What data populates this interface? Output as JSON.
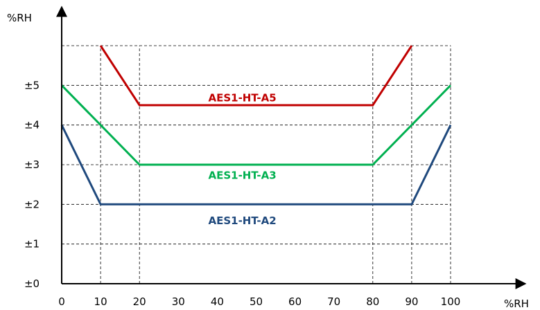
{
  "chart_data": {
    "type": "line",
    "title": "",
    "xlabel": "%RH",
    "ylabel": "%RH",
    "xlim": [
      0,
      100
    ],
    "ylim": [
      0,
      6
    ],
    "grid": true,
    "x_ticks": [
      0,
      10,
      20,
      30,
      40,
      50,
      60,
      70,
      80,
      90,
      100
    ],
    "y_ticks": [
      {
        "value": 0,
        "label": "±0"
      },
      {
        "value": 1,
        "label": "±1"
      },
      {
        "value": 2,
        "label": "±2"
      },
      {
        "value": 3,
        "label": "±3"
      },
      {
        "value": 4,
        "label": "±4"
      },
      {
        "value": 5,
        "label": "±5"
      }
    ],
    "series": [
      {
        "name": "AES1-HT-A5",
        "color": "#c00000",
        "label_at": [
          37.7,
          4.6
        ],
        "points": [
          [
            10,
            6
          ],
          [
            20,
            4.5
          ],
          [
            80,
            4.5
          ],
          [
            90,
            6
          ]
        ]
      },
      {
        "name": "AES1-HT-A3",
        "color": "#00b050",
        "label_at": [
          37.7,
          2.64
        ],
        "points": [
          [
            0,
            5
          ],
          [
            20,
            3
          ],
          [
            80,
            3
          ],
          [
            100,
            5
          ]
        ]
      },
      {
        "name": "AES1-HT-A2",
        "color": "#1f497d",
        "label_at": [
          37.7,
          1.5
        ],
        "points": [
          [
            0,
            4
          ],
          [
            10,
            2
          ],
          [
            90,
            2
          ],
          [
            100,
            4
          ]
        ]
      }
    ]
  }
}
